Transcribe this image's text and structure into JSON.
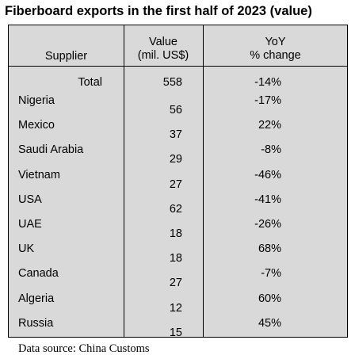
{
  "chart_data": {
    "type": "table",
    "title": "Fiberboard exports in the first half of 2023 (value)",
    "columns": [
      "Supplier",
      "Value (mil. US$)",
      "YoY % change"
    ],
    "header_lines": {
      "supplier": "Supplier",
      "value_line1": "Value",
      "value_line2": "(mil. US$)",
      "yoy_line1": "YoY",
      "yoy_line2": "% change"
    },
    "total": {
      "label": "Total",
      "value": "558",
      "yoy": "-14%"
    },
    "rows": [
      {
        "supplier": "Nigeria",
        "value": "56",
        "yoy": "-17%"
      },
      {
        "supplier": "Mexico",
        "value": "37",
        "yoy": "22%"
      },
      {
        "supplier": "Saudi Arabia",
        "value": "29",
        "yoy": "-8%"
      },
      {
        "supplier": "Vietnam",
        "value": "27",
        "yoy": "-46%"
      },
      {
        "supplier": "USA",
        "value": "62",
        "yoy": "-41%"
      },
      {
        "supplier": "UAE",
        "value": "18",
        "yoy": "-26%"
      },
      {
        "supplier": "UK",
        "value": "18",
        "yoy": "68%"
      },
      {
        "supplier": "Canada",
        "value": "27",
        "yoy": "-7%"
      },
      {
        "supplier": "Algeria",
        "value": "12",
        "yoy": "60%"
      },
      {
        "supplier": "Russia",
        "value": "15",
        "yoy": "45%"
      }
    ],
    "source": "Data source: China Customs"
  }
}
